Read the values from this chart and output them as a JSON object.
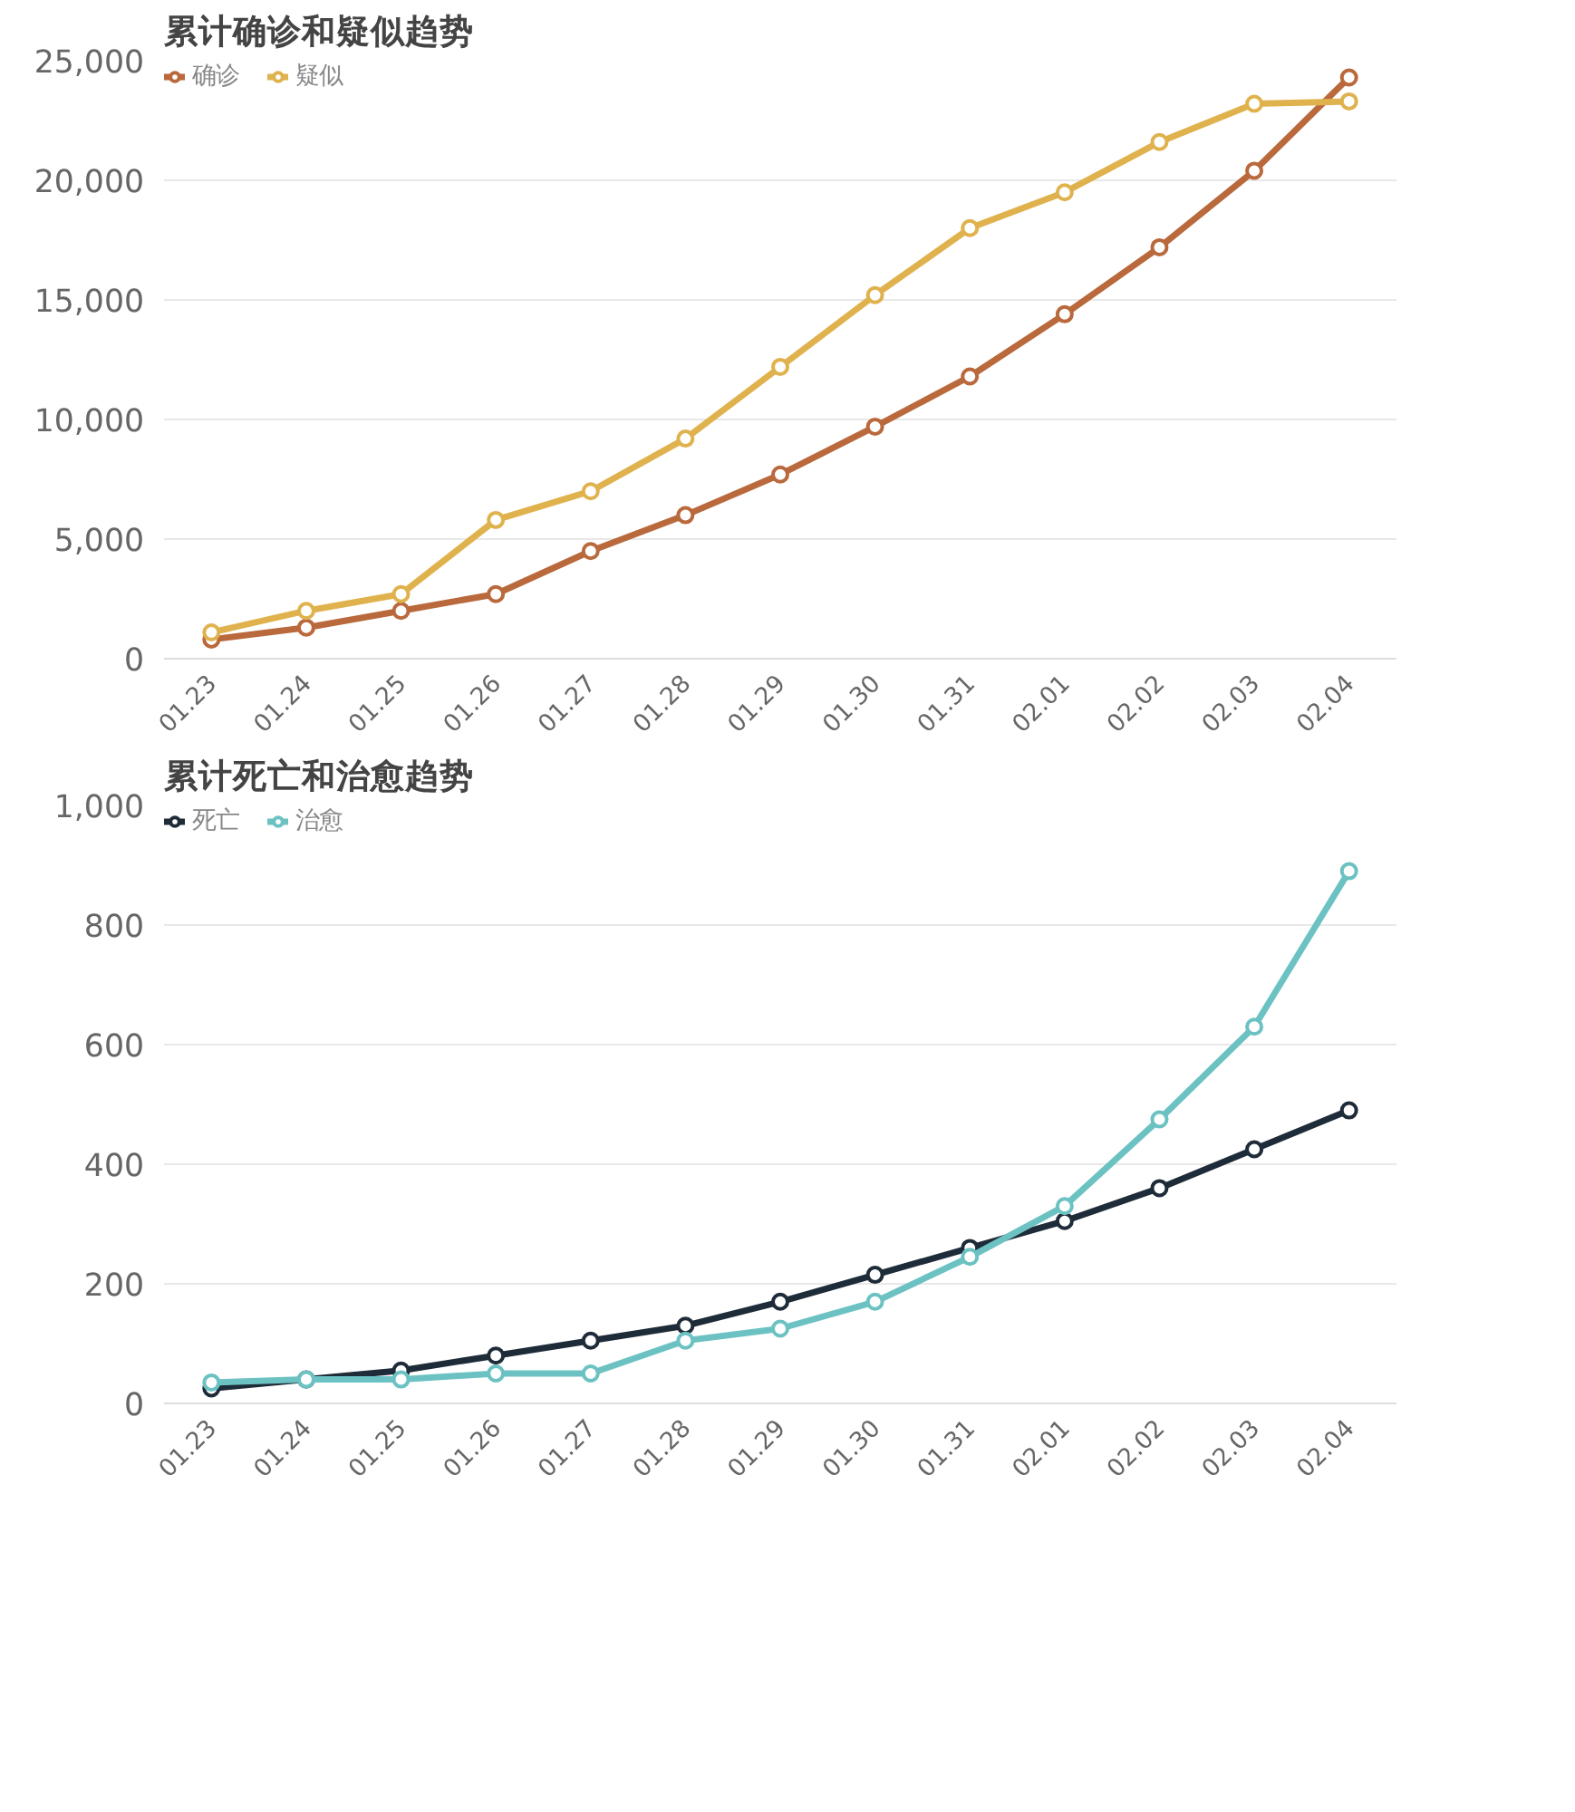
{
  "chart_data": [
    {
      "type": "line",
      "title": "累计确诊和疑似趋势",
      "categories": [
        "01.23",
        "01.24",
        "01.25",
        "01.26",
        "01.27",
        "01.28",
        "01.29",
        "01.30",
        "01.31",
        "02.01",
        "02.02",
        "02.03",
        "02.04"
      ],
      "series": [
        {
          "name": "确诊",
          "color": "#b9693c",
          "values": [
            800,
            1300,
            2000,
            2700,
            4500,
            6000,
            7700,
            9700,
            11800,
            14400,
            17200,
            20400,
            24300
          ]
        },
        {
          "name": "疑似",
          "color": "#e0b24e",
          "values": [
            1100,
            2000,
            2700,
            5800,
            7000,
            9200,
            12200,
            15200,
            18000,
            19500,
            21600,
            23200,
            23300
          ]
        }
      ],
      "ylim": [
        0,
        25000
      ],
      "yticks": [
        0,
        {
          "value": 5000,
          "label": "5,000"
        },
        {
          "value": 10000,
          "label": "10,000"
        },
        {
          "value": 15000,
          "label": "15,000"
        },
        {
          "value": 20000,
          "label": "20,000"
        },
        {
          "value": 25000,
          "label": "25,000"
        }
      ],
      "grid": "y",
      "legend": "top left",
      "marker": "circle",
      "line_style": "solid"
    },
    {
      "type": "line",
      "title": "累计死亡和治愈趋势",
      "categories": [
        "01.23",
        "01.24",
        "01.25",
        "01.26",
        "01.27",
        "01.28",
        "01.29",
        "01.30",
        "01.31",
        "02.01",
        "02.02",
        "02.03",
        "02.04"
      ],
      "series": [
        {
          "name": "死亡",
          "color": "#1e2b38",
          "values": [
            25,
            40,
            55,
            80,
            105,
            130,
            170,
            215,
            260,
            305,
            360,
            425,
            490
          ]
        },
        {
          "name": "治愈",
          "color": "#6cc2c2",
          "values": [
            35,
            40,
            40,
            50,
            50,
            105,
            125,
            170,
            245,
            330,
            475,
            630,
            890
          ]
        }
      ],
      "ylim": [
        0,
        1000
      ],
      "yticks": [
        0,
        200,
        400,
        600,
        800,
        {
          "value": 1000,
          "label": "1,000"
        }
      ],
      "grid": "y",
      "legend": "top left",
      "marker": "circle",
      "line_style": "solid"
    }
  ]
}
